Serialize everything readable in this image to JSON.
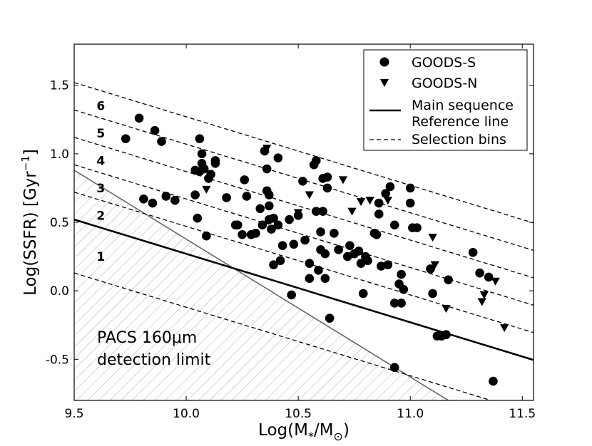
{
  "chart_data": {
    "type": "scatter",
    "xlabel_main": "Log(M",
    "xlabel_sub": "*",
    "xlabel_mid": "/M",
    "xlabel_sub2": "⊙",
    "xlabel_end": ")",
    "ylabel_main": "Log(SSFR) [Gyr",
    "ylabel_sup": "−1",
    "ylabel_end": "]",
    "xlim": [
      9.5,
      11.55
    ],
    "ylim": [
      -0.8,
      1.8
    ],
    "x_ticks": [
      9.5,
      10.0,
      10.5,
      11.0,
      11.5
    ],
    "x_tick_labels": [
      "9.5",
      "10.0",
      "10.5",
      "11.0",
      "11.5"
    ],
    "y_ticks": [
      -0.5,
      0.0,
      0.5,
      1.0,
      1.5
    ],
    "y_tick_labels": [
      "-0.5",
      "0.0",
      "0.5",
      "1.0",
      "1.5"
    ],
    "main_sequence": {
      "slope": -0.5,
      "intercept_at_9_5": 0.52
    },
    "selection_bins": {
      "slope": -0.5,
      "intercepts_at_9_5": [
        0.13,
        0.72,
        0.92,
        1.12,
        1.32,
        1.52
      ]
    },
    "bin_labels": [
      {
        "text": "1",
        "x": 9.6,
        "y": 0.25
      },
      {
        "text": "2",
        "x": 9.6,
        "y": 0.55
      },
      {
        "text": "3",
        "x": 9.6,
        "y": 0.75
      },
      {
        "text": "4",
        "x": 9.6,
        "y": 0.95
      },
      {
        "text": "5",
        "x": 9.6,
        "y": 1.15
      },
      {
        "text": "6",
        "x": 9.6,
        "y": 1.35
      }
    ],
    "detection_limit": {
      "points": [
        [
          9.5,
          0.88
        ],
        [
          11.17,
          -0.8
        ]
      ],
      "label_line1": "PACS 160μm",
      "label_line2": "detection limit"
    },
    "legend": {
      "position": "top-right",
      "entries": [
        {
          "label": "GOODS-S",
          "marker": "circle"
        },
        {
          "label": "GOODS-N",
          "marker": "triangle-down"
        },
        {
          "label": "Main sequence",
          "marker": "solid-line"
        },
        {
          "label": "Reference line",
          "marker": "none"
        },
        {
          "label": "Selection bins",
          "marker": "dashed-line"
        }
      ]
    },
    "series": [
      {
        "name": "GOODS-S",
        "marker": "circle",
        "points": [
          [
            9.73,
            1.11
          ],
          [
            9.79,
            1.26
          ],
          [
            9.81,
            0.67
          ],
          [
            9.85,
            0.64
          ],
          [
            9.86,
            1.17
          ],
          [
            9.89,
            1.09
          ],
          [
            9.91,
            0.69
          ],
          [
            9.95,
            0.66
          ],
          [
            10.04,
            0.88
          ],
          [
            10.04,
            0.7
          ],
          [
            10.05,
            0.53
          ],
          [
            10.06,
            1.11
          ],
          [
            10.06,
            0.87
          ],
          [
            10.07,
            0.93
          ],
          [
            10.07,
            1.0
          ],
          [
            10.08,
            0.89
          ],
          [
            10.09,
            0.4
          ],
          [
            10.1,
            0.82
          ],
          [
            10.11,
            0.85
          ],
          [
            10.13,
            0.93
          ],
          [
            10.13,
            0.95
          ],
          [
            10.18,
            0.68
          ],
          [
            10.22,
            0.48
          ],
          [
            10.23,
            0.48
          ],
          [
            10.25,
            0.41
          ],
          [
            10.26,
            0.81
          ],
          [
            10.27,
            0.69
          ],
          [
            10.29,
            0.41
          ],
          [
            10.31,
            0.42
          ],
          [
            10.33,
            0.6
          ],
          [
            10.34,
            0.48
          ],
          [
            10.35,
            1.02
          ],
          [
            10.36,
            0.73
          ],
          [
            10.36,
            0.89
          ],
          [
            10.37,
            0.62
          ],
          [
            10.37,
            0.52
          ],
          [
            10.37,
            0.7
          ],
          [
            10.38,
            0.45
          ],
          [
            10.39,
            0.19
          ],
          [
            10.39,
            0.53
          ],
          [
            10.41,
            0.97
          ],
          [
            10.41,
            0.48
          ],
          [
            10.42,
            0.22
          ],
          [
            10.43,
            0.33
          ],
          [
            10.46,
            0.52
          ],
          [
            10.47,
            -0.03
          ],
          [
            10.48,
            0.34
          ],
          [
            10.5,
            0.55
          ],
          [
            10.52,
            0.8
          ],
          [
            10.53,
            0.37
          ],
          [
            10.55,
            0.2
          ],
          [
            10.55,
            0.09
          ],
          [
            10.57,
            0.92
          ],
          [
            10.58,
            0.95
          ],
          [
            10.58,
            0.58
          ],
          [
            10.59,
            0.15
          ],
          [
            10.6,
            0.43
          ],
          [
            10.6,
            0.3
          ],
          [
            10.61,
            0.82
          ],
          [
            10.61,
            0.58
          ],
          [
            10.62,
            0.27
          ],
          [
            10.62,
            0.09
          ],
          [
            10.63,
            0.75
          ],
          [
            10.63,
            0.83
          ],
          [
            10.64,
            -0.2
          ],
          [
            10.66,
            0.42
          ],
          [
            10.68,
            0.3
          ],
          [
            10.72,
            0.25
          ],
          [
            10.73,
            0.33
          ],
          [
            10.75,
            0.27
          ],
          [
            10.77,
            0.29
          ],
          [
            10.78,
            0.2
          ],
          [
            10.79,
            -0.02
          ],
          [
            10.8,
            0.25
          ],
          [
            10.81,
            0.22
          ],
          [
            10.84,
            0.42
          ],
          [
            10.85,
            0.41
          ],
          [
            10.86,
            0.56
          ],
          [
            10.86,
            0.64
          ],
          [
            10.87,
            0.18
          ],
          [
            10.89,
            0.71
          ],
          [
            10.9,
            0.19
          ],
          [
            10.91,
            0.76
          ],
          [
            10.93,
            0.48
          ],
          [
            10.93,
            -0.09
          ],
          [
            10.93,
            -0.56
          ],
          [
            10.95,
            0.05
          ],
          [
            10.96,
            -0.09
          ],
          [
            10.96,
            0.12
          ],
          [
            10.97,
            0.01
          ],
          [
            11.0,
            0.75
          ],
          [
            11.0,
            0.64
          ],
          [
            11.01,
            0.46
          ],
          [
            11.03,
            0.46
          ],
          [
            11.09,
            0.16
          ],
          [
            11.1,
            -0.02
          ],
          [
            11.12,
            -0.33
          ],
          [
            11.14,
            -0.33
          ],
          [
            11.16,
            -0.32
          ],
          [
            11.17,
            0.08
          ],
          [
            11.28,
            0.28
          ],
          [
            11.31,
            0.13
          ],
          [
            11.35,
            0.1
          ],
          [
            11.37,
            -0.66
          ]
        ]
      },
      {
        "name": "GOODS-N",
        "marker": "triangle-down",
        "points": [
          [
            10.09,
            0.74
          ],
          [
            10.36,
            1.04
          ],
          [
            10.5,
            0.57
          ],
          [
            10.55,
            0.7
          ],
          [
            10.7,
            0.81
          ],
          [
            10.74,
            0.58
          ],
          [
            10.78,
            0.65
          ],
          [
            10.82,
            0.66
          ],
          [
            10.9,
            0.66
          ],
          [
            11.1,
            0.39
          ],
          [
            11.11,
            0.19
          ],
          [
            11.16,
            -0.13
          ],
          [
            11.32,
            -0.08
          ],
          [
            11.33,
            -0.03
          ],
          [
            11.38,
            0.07
          ],
          [
            11.42,
            -0.27
          ]
        ]
      }
    ]
  }
}
